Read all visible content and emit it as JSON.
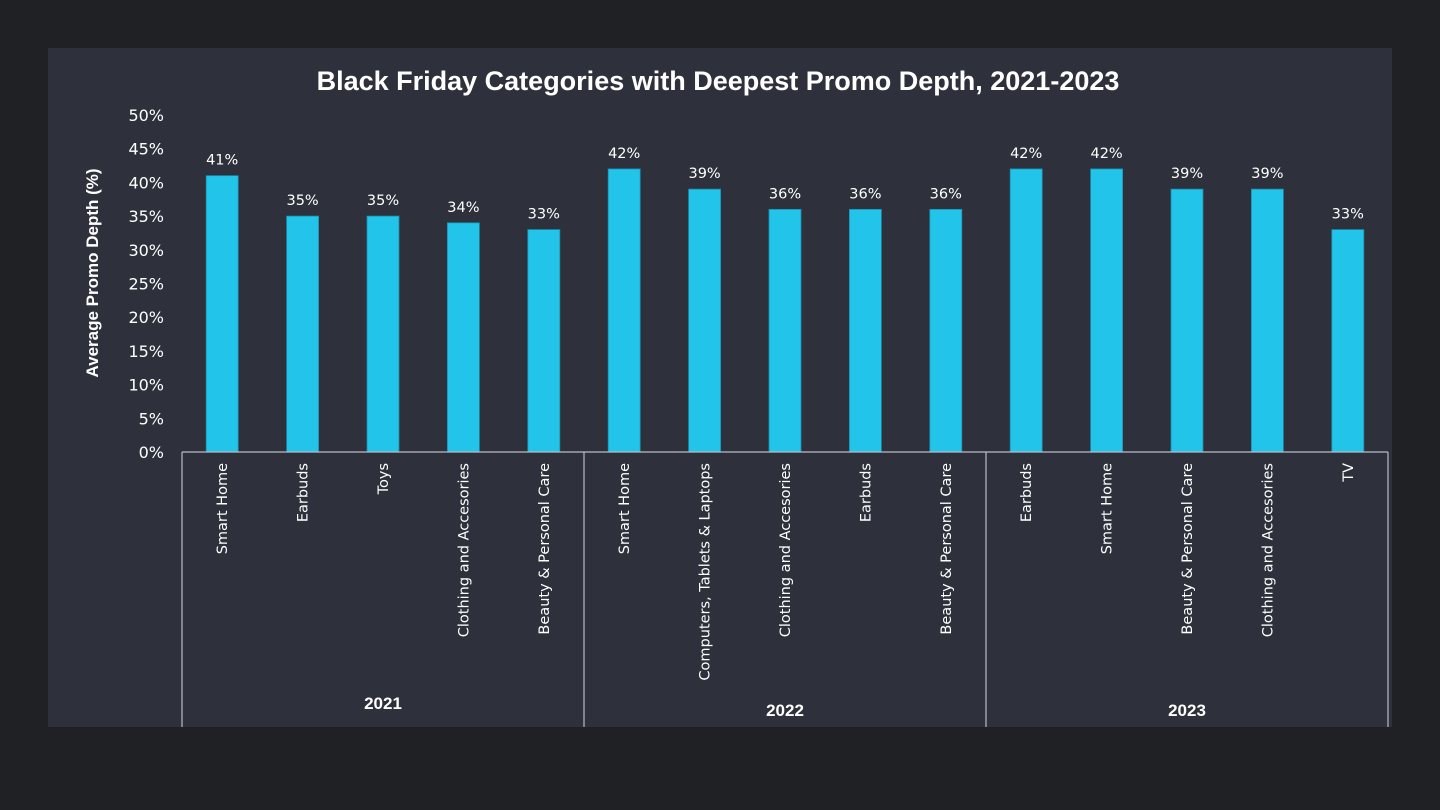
{
  "chart_data": {
    "type": "bar",
    "title": "Black Friday Categories with Deepest Promo Depth, 2021-2023",
    "ylabel": "Average Promo Depth (%)",
    "xlabel": "",
    "ylim": [
      0,
      50
    ],
    "y_ticks": [
      "0%",
      "5%",
      "10%",
      "15%",
      "20%",
      "25%",
      "30%",
      "35%",
      "40%",
      "45%",
      "50%"
    ],
    "grid": false,
    "legend": "none",
    "bar_color": "#22c4ea",
    "groups": [
      {
        "name": "2021",
        "categories": [
          "Smart Home",
          "Earbuds",
          "Toys",
          "Clothing and Accesories",
          "Beauty & Personal Care"
        ],
        "values": [
          41,
          35,
          35,
          34,
          33
        ],
        "labels": [
          "41%",
          "35%",
          "35%",
          "34%",
          "33%"
        ]
      },
      {
        "name": "2022",
        "categories": [
          "Smart Home",
          "Computers, Tablets & Laptops",
          "Clothing and Accesories",
          "Earbuds",
          "Beauty & Personal Care"
        ],
        "values": [
          42,
          39,
          36,
          36,
          36
        ],
        "labels": [
          "42%",
          "39%",
          "36%",
          "36%",
          "36%"
        ]
      },
      {
        "name": "2023",
        "categories": [
          "Earbuds",
          "Smart Home",
          "Beauty & Personal Care",
          "Clothing and Accesories",
          "TV"
        ],
        "values": [
          42,
          42,
          39,
          39,
          33
        ],
        "labels": [
          "42%",
          "42%",
          "39%",
          "39%",
          "33%"
        ]
      }
    ]
  }
}
